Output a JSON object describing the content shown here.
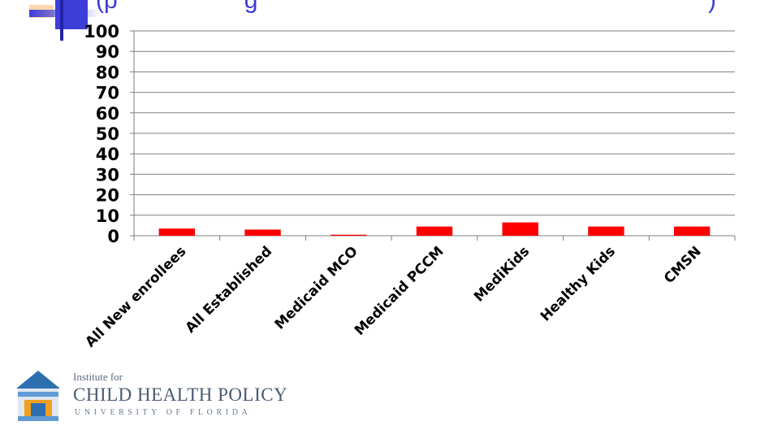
{
  "slide": {
    "title_fragment_left": "(p",
    "title_fragment_mid": "g",
    "title_fragment_right": ")"
  },
  "logo": {
    "line1": "Institute for",
    "line2": "CHILD HEALTH POLICY",
    "line3": "UNIVERSITY OF FLORIDA"
  },
  "colors": {
    "bar": "#ff0000",
    "grid": "#7f7f7f",
    "title": "#3b3bd6",
    "logo_blue": "#2e6fb0",
    "logo_orange": "#f0a020"
  },
  "chart_data": {
    "type": "bar",
    "title": "",
    "xlabel": "",
    "ylabel": "",
    "ylim": [
      0,
      100
    ],
    "yticks": [
      0,
      10,
      20,
      30,
      40,
      50,
      60,
      70,
      80,
      90,
      100
    ],
    "grid": true,
    "legend": "none",
    "categories": [
      "All New enrollees",
      "All Established",
      "Medicaid MCO",
      "Medicaid PCCM",
      "MediKids",
      "Healthy Kids",
      "CMSN"
    ],
    "values": [
      3.5,
      3,
      0.5,
      4.5,
      6.5,
      4.5,
      4.5
    ]
  }
}
